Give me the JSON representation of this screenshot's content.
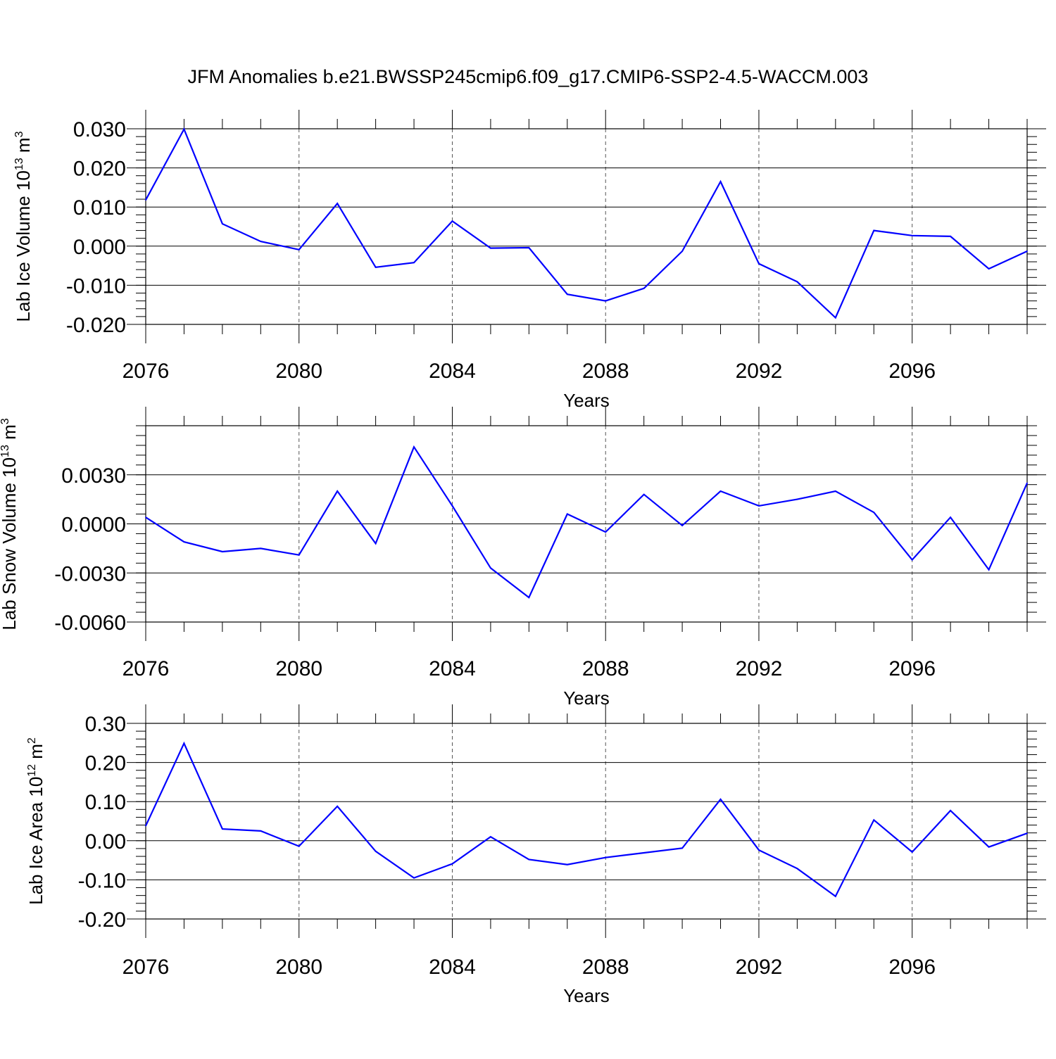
{
  "title": "JFM Anomalies b.e21.BWSSP245cmip6.f09_g17.CMIP6-SSP2-4.5-WACCM.003",
  "line_color": "#0000ff",
  "chart_data": [
    {
      "type": "line",
      "ylabel_prefix": "Lab Ice Volume 10",
      "ylabel_exp": "13",
      "ylabel_unit": " m",
      "ylabel_unit_exp": "3",
      "xlabel": "Years",
      "xlim": [
        2076,
        2099
      ],
      "ylim": [
        -0.02,
        0.03
      ],
      "x_ticks": [
        2076,
        2080,
        2084,
        2088,
        2092,
        2096
      ],
      "x_tick_labels": [
        "2076",
        "2080",
        "2084",
        "2088",
        "2092",
        "2096"
      ],
      "y_ticks": [
        -0.02,
        -0.01,
        0.0,
        0.01,
        0.02,
        0.03
      ],
      "y_tick_labels": [
        "-0.020",
        "-0.010",
        "0.000",
        "0.010",
        "0.020",
        "0.030"
      ],
      "grid": "vertical dashed at major x ticks",
      "x": [
        2076,
        2077,
        2078,
        2079,
        2080,
        2081,
        2082,
        2083,
        2084,
        2085,
        2086,
        2087,
        2088,
        2089,
        2090,
        2091,
        2092,
        2093,
        2094,
        2095,
        2096,
        2097,
        2098,
        2099
      ],
      "values": [
        0.0118,
        0.0299,
        0.0057,
        0.0012,
        -0.0009,
        0.0109,
        -0.0054,
        -0.0042,
        0.0064,
        -0.0005,
        -0.0004,
        -0.0123,
        -0.014,
        -0.0108,
        -0.0013,
        0.0165,
        -0.0045,
        -0.0091,
        -0.0183,
        0.004,
        0.0027,
        0.0025,
        -0.0058,
        -0.0013
      ]
    },
    {
      "type": "line",
      "ylabel_prefix": "Lab Snow Volume 10",
      "ylabel_exp": "13",
      "ylabel_unit": " m",
      "ylabel_unit_exp": "3",
      "xlabel": "Years",
      "xlim": [
        2076,
        2099
      ],
      "ylim": [
        -0.006,
        0.006
      ],
      "x_ticks": [
        2076,
        2080,
        2084,
        2088,
        2092,
        2096
      ],
      "x_tick_labels": [
        "2076",
        "2080",
        "2084",
        "2088",
        "2092",
        "2096"
      ],
      "y_ticks": [
        -0.006,
        -0.003,
        0.0,
        0.003
      ],
      "y_tick_labels": [
        "-0.0060",
        "-0.0030",
        "0.0000",
        "0.0030"
      ],
      "grid": "vertical dashed at major x ticks",
      "x": [
        2076,
        2077,
        2078,
        2079,
        2080,
        2081,
        2082,
        2083,
        2084,
        2085,
        2086,
        2087,
        2088,
        2089,
        2090,
        2091,
        2092,
        2093,
        2094,
        2095,
        2096,
        2097,
        2098,
        2099
      ],
      "values": [
        0.0004,
        -0.0011,
        -0.0017,
        -0.0015,
        -0.0019,
        0.002,
        -0.0012,
        0.0047,
        0.0011,
        -0.0027,
        -0.0045,
        0.0006,
        -0.0005,
        0.0018,
        -0.0001,
        0.002,
        0.0011,
        0.0015,
        0.002,
        0.0007,
        -0.0022,
        0.0004,
        -0.0028,
        0.0025
      ]
    },
    {
      "type": "line",
      "ylabel_prefix": "Lab Ice Area 10",
      "ylabel_exp": "12",
      "ylabel_unit": " m",
      "ylabel_unit_exp": "2",
      "xlabel": "Years",
      "xlim": [
        2076,
        2099
      ],
      "ylim": [
        -0.2,
        0.3
      ],
      "x_ticks": [
        2076,
        2080,
        2084,
        2088,
        2092,
        2096
      ],
      "x_tick_labels": [
        "2076",
        "2080",
        "2084",
        "2088",
        "2092",
        "2096"
      ],
      "y_ticks": [
        -0.2,
        -0.1,
        0.0,
        0.1,
        0.2,
        0.3
      ],
      "y_tick_labels": [
        "-0.20",
        "-0.10",
        "0.00",
        "0.10",
        "0.20",
        "0.30"
      ],
      "grid": "vertical dashed at major x ticks",
      "x": [
        2076,
        2077,
        2078,
        2079,
        2080,
        2081,
        2082,
        2083,
        2084,
        2085,
        2086,
        2087,
        2088,
        2089,
        2090,
        2091,
        2092,
        2093,
        2094,
        2095,
        2096,
        2097,
        2098,
        2099
      ],
      "values": [
        0.038,
        0.249,
        0.03,
        0.025,
        -0.014,
        0.088,
        -0.027,
        -0.095,
        -0.059,
        0.01,
        -0.048,
        -0.061,
        -0.043,
        -0.031,
        -0.019,
        0.106,
        -0.024,
        -0.071,
        -0.142,
        0.053,
        -0.029,
        0.077,
        -0.016,
        0.019
      ]
    }
  ]
}
